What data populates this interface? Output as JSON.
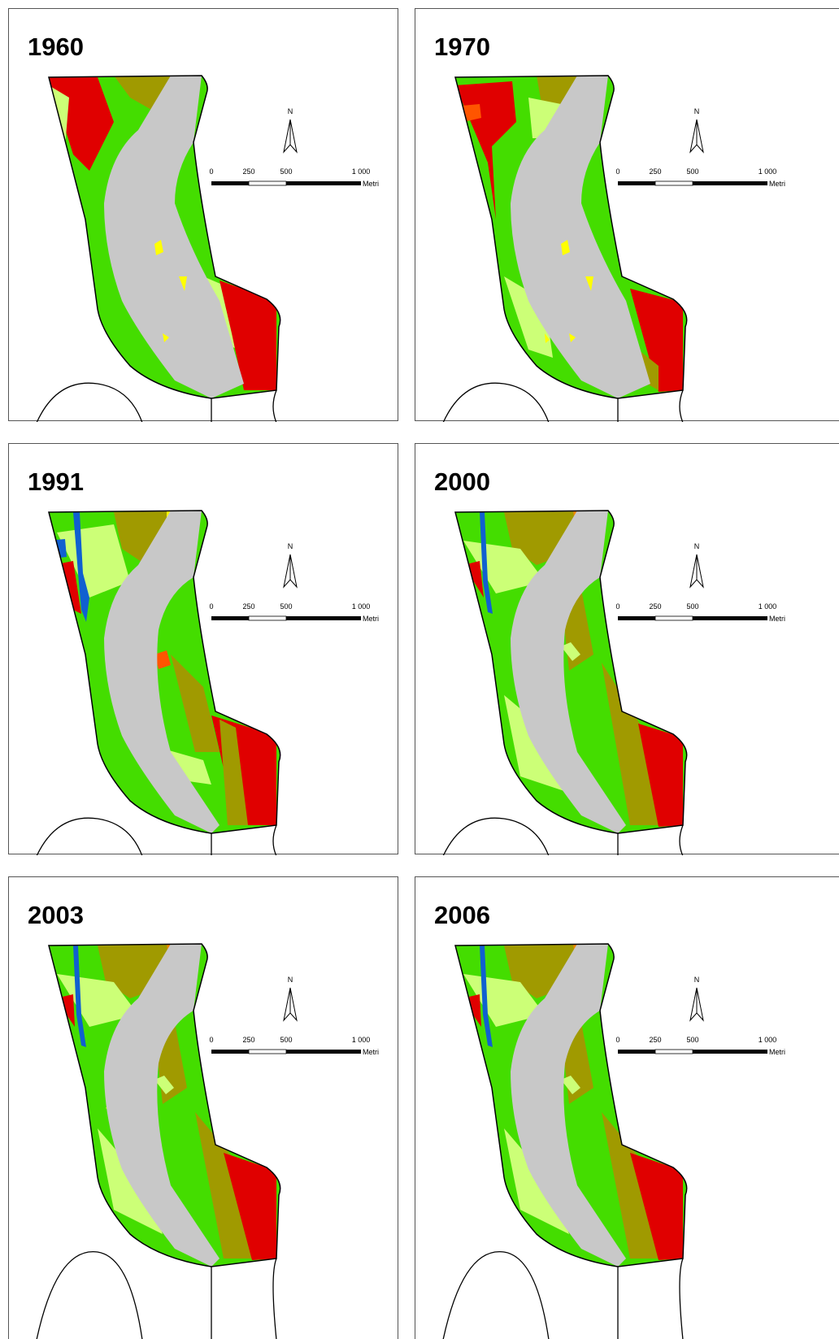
{
  "panels": [
    {
      "year": "1960"
    },
    {
      "year": "1970"
    },
    {
      "year": "1991"
    },
    {
      "year": "2000"
    },
    {
      "year": "2003"
    },
    {
      "year": "2006"
    }
  ],
  "north": "N",
  "scale": {
    "ticks": [
      "0",
      "250",
      "500",
      "1 000"
    ],
    "unit": "Metri"
  }
}
